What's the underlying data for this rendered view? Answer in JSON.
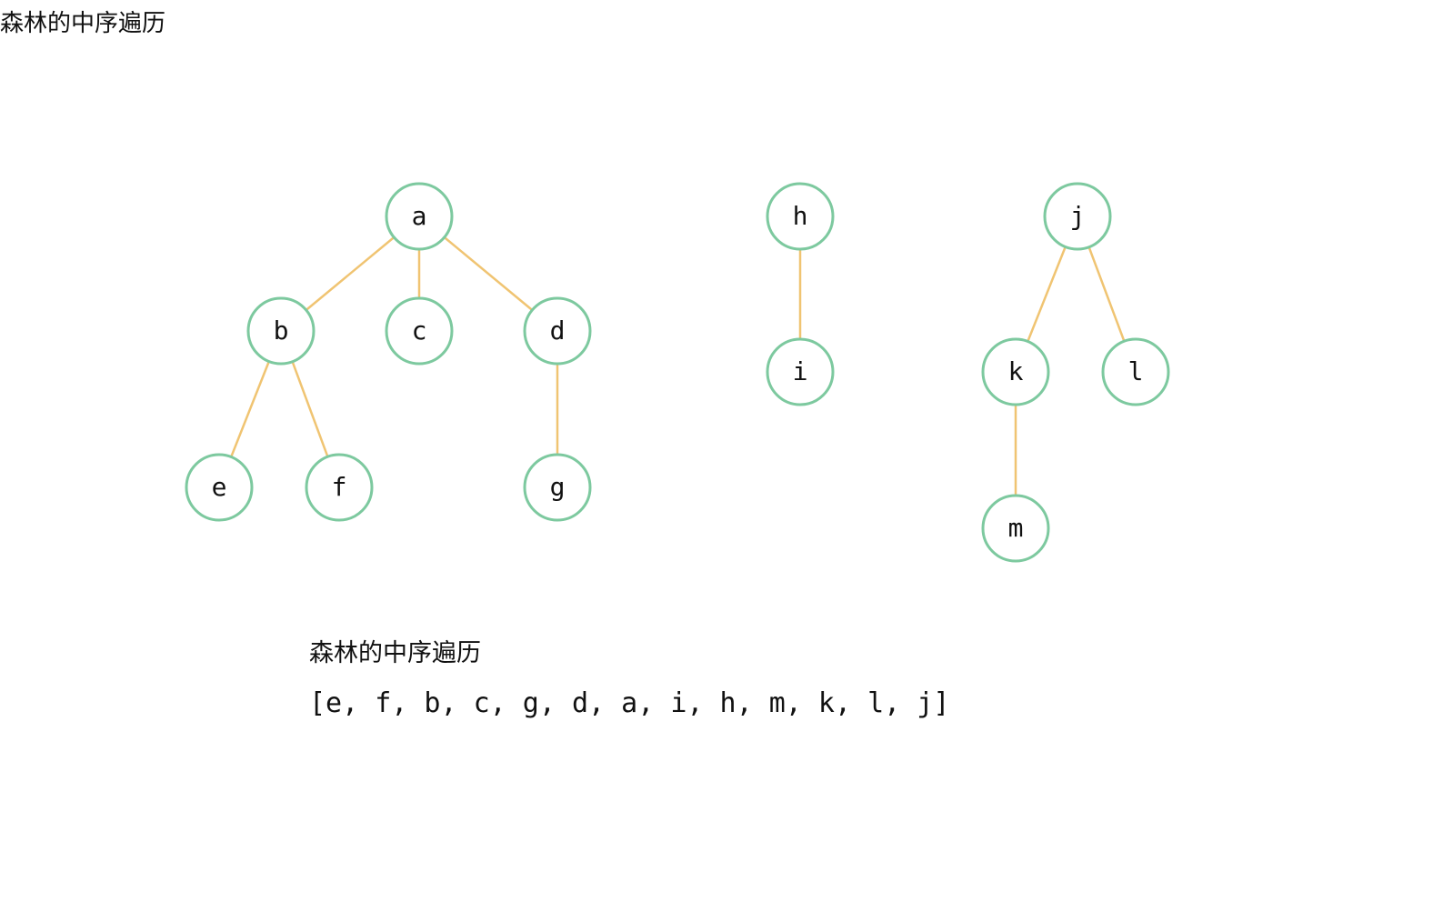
{
  "header": {
    "title": "森林的中序遍历"
  },
  "colors": {
    "node_border": "#7dc99f",
    "edge": "#f0c472",
    "node_fill": "#ffffff",
    "text": "#111111"
  },
  "forest": {
    "trees": [
      {
        "root": "a",
        "edges": [
          [
            "a",
            "b"
          ],
          [
            "a",
            "c"
          ],
          [
            "a",
            "d"
          ],
          [
            "b",
            "e"
          ],
          [
            "b",
            "f"
          ],
          [
            "d",
            "g"
          ]
        ]
      },
      {
        "root": "h",
        "edges": [
          [
            "h",
            "i"
          ]
        ]
      },
      {
        "root": "j",
        "edges": [
          [
            "j",
            "k"
          ],
          [
            "j",
            "l"
          ],
          [
            "k",
            "m"
          ]
        ]
      }
    ],
    "nodes": [
      "a",
      "b",
      "c",
      "d",
      "e",
      "f",
      "g",
      "h",
      "i",
      "j",
      "k",
      "l",
      "m"
    ]
  },
  "result": {
    "label": "森林的中序遍历",
    "sequence": "[e, f, b, c, g, d, a, i, h, m, k, l, j]"
  }
}
